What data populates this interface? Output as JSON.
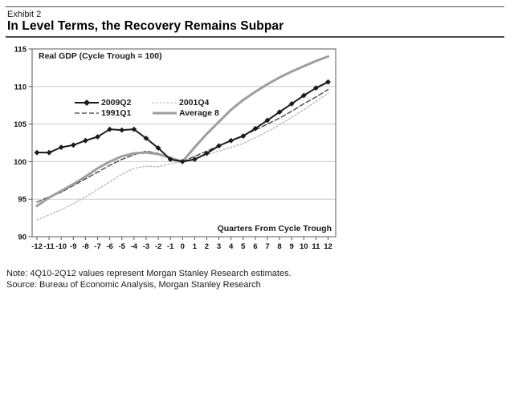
{
  "header": {
    "exhibit": "Exhibit 2",
    "title": "In Level Terms, the Recovery Remains Subpar"
  },
  "footer": {
    "note": "Note: 4Q10-2Q12 values represent Morgan Stanley Research estimates.",
    "source": "Source: Bureau of Economic Analysis, Morgan Stanley Research"
  },
  "chart_data": {
    "type": "line",
    "title": "Real GDP (Cycle Trough = 100)",
    "xlabel": "Quarters From Cycle Trough",
    "ylabel": "",
    "ylim": [
      90,
      115
    ],
    "yticks": [
      90,
      95,
      100,
      105,
      110,
      115
    ],
    "grid": "horizontal",
    "legend_position": "inside-top-left",
    "x": [
      -12,
      -11,
      -10,
      -9,
      -8,
      -7,
      -6,
      -5,
      -4,
      -3,
      -2,
      -1,
      0,
      1,
      2,
      3,
      4,
      5,
      6,
      7,
      8,
      9,
      10,
      11,
      12
    ],
    "series": [
      {
        "name": "2009Q2",
        "color": "#1a1a1a",
        "style": "solid",
        "marker": "diamond",
        "width": 2,
        "dash": "",
        "z": 4,
        "values": [
          101.2,
          101.2,
          101.9,
          102.2,
          102.8,
          103.3,
          104.3,
          104.2,
          104.3,
          103.1,
          101.8,
          100.3,
          100.0,
          100.3,
          101.1,
          102.1,
          102.8,
          103.4,
          104.4,
          105.5,
          106.6,
          107.7,
          108.8,
          109.8,
          110.6
        ]
      },
      {
        "name": "1991Q1",
        "color": "#3c3c3c",
        "style": "dashed",
        "marker": "none",
        "width": 1.3,
        "dash": "6 3",
        "z": 2,
        "values": [
          94.6,
          95.3,
          95.9,
          96.8,
          97.7,
          98.6,
          99.5,
          100.3,
          100.9,
          101.4,
          101.1,
          100.3,
          100.0,
          100.7,
          101.4,
          102.1,
          102.8,
          103.5,
          104.2,
          105.0,
          105.8,
          106.7,
          107.7,
          108.6,
          109.6
        ]
      },
      {
        "name": "2001Q4",
        "color": "#b5b5b5",
        "style": "dotted",
        "marker": "none",
        "width": 1.3,
        "dash": "2 2.5",
        "z": 1,
        "values": [
          92.2,
          92.9,
          93.6,
          94.4,
          95.3,
          96.3,
          97.3,
          98.3,
          99.1,
          99.4,
          99.3,
          99.7,
          100.0,
          100.3,
          100.9,
          101.4,
          101.9,
          102.4,
          103.2,
          104.0,
          104.9,
          105.9,
          106.9,
          108.0,
          109.1
        ]
      },
      {
        "name": "Average 8",
        "color": "#9e9e9e",
        "style": "solid",
        "marker": "none",
        "width": 3,
        "dash": "",
        "z": 3,
        "values": [
          94.1,
          95.2,
          96.1,
          97.0,
          98.0,
          99.1,
          100.0,
          100.7,
          101.1,
          101.2,
          101.0,
          100.5,
          100.0,
          101.9,
          103.7,
          105.3,
          106.9,
          108.2,
          109.3,
          110.3,
          111.2,
          112.0,
          112.7,
          113.4,
          114.0
        ]
      }
    ]
  }
}
